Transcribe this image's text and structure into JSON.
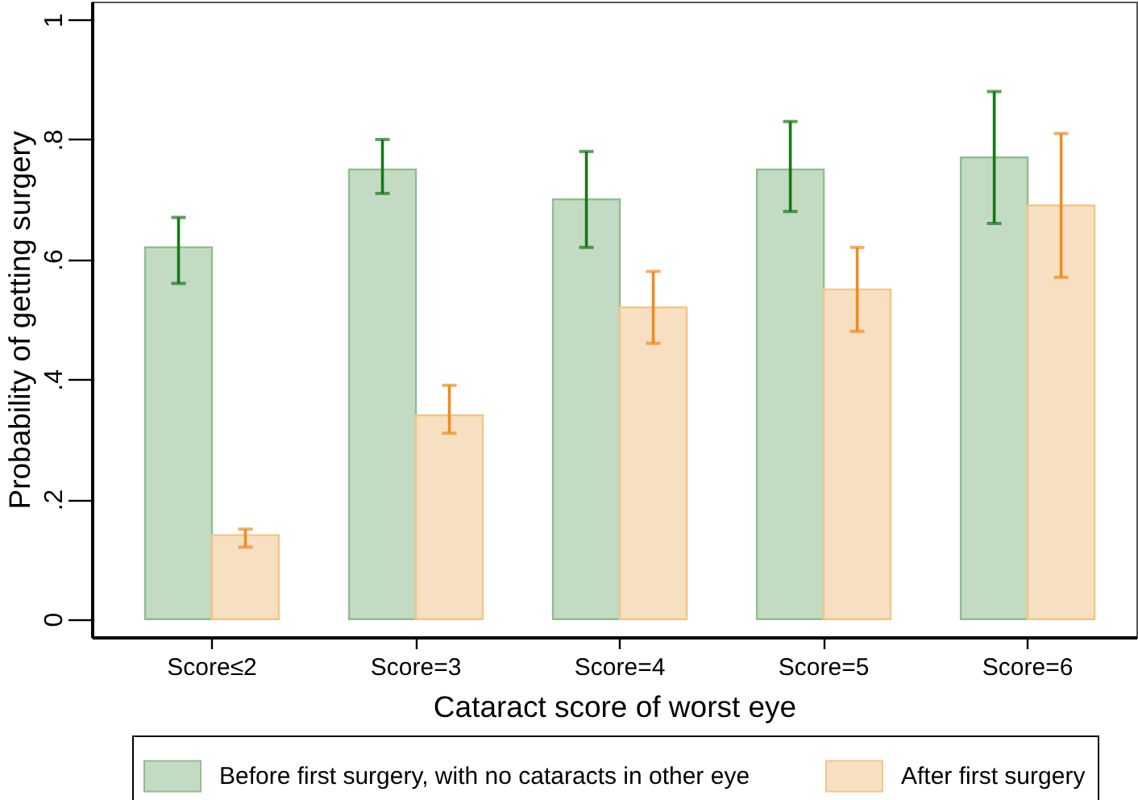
{
  "chart_data": {
    "type": "bar",
    "xlabel": "Cataract score of worst eye",
    "ylabel": "Probability of getting surgery",
    "categories": [
      "Score≤2",
      "Score=3",
      "Score=4",
      "Score=5",
      "Score=6"
    ],
    "series": [
      {
        "name": "Before first surgery, with no cataracts in other eye",
        "color": "#c3dbc3",
        "values": [
          0.62,
          0.75,
          0.7,
          0.75,
          0.77
        ],
        "errors": [
          [
            0.56,
            0.67
          ],
          [
            0.71,
            0.8
          ],
          [
            0.62,
            0.78
          ],
          [
            0.68,
            0.83
          ],
          [
            0.66,
            0.88
          ]
        ]
      },
      {
        "name": "After first surgery",
        "color": "#f7dfc1",
        "values": [
          0.14,
          0.34,
          0.52,
          0.55,
          0.69
        ],
        "errors": [
          [
            0.12,
            0.15
          ],
          [
            0.31,
            0.39
          ],
          [
            0.46,
            0.58
          ],
          [
            0.48,
            0.62
          ],
          [
            0.57,
            0.81
          ]
        ]
      }
    ],
    "ylim": [
      -0.03,
      1.03
    ],
    "yticks": [
      0,
      {
        "value": 0.2,
        "label": ".2"
      },
      {
        "value": 0.4,
        "label": ".4"
      },
      {
        "value": 0.6,
        "label": ".6"
      },
      {
        "value": 0.8,
        "label": ".8"
      },
      1
    ],
    "grid": false,
    "legend": "bottom"
  }
}
